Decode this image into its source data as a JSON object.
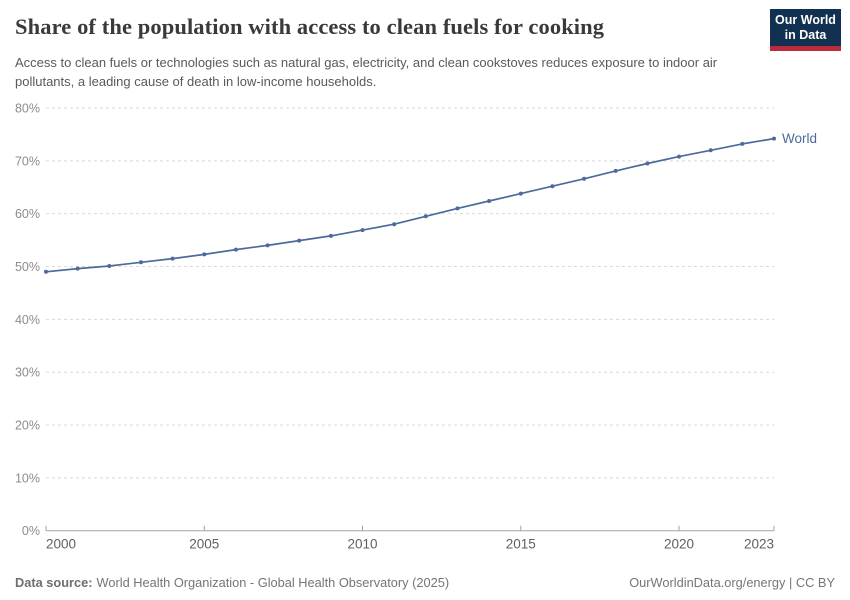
{
  "header": {
    "title": "Share of the population with access to clean fuels for cooking",
    "subtitle": "Access to clean fuels or technologies such as natural gas, electricity, and clean cookstoves reduces exposure to indoor air pollutants, a leading cause of death in low-income households.",
    "logo": {
      "line1": "Our World",
      "line2": "in Data",
      "bg_color": "#12304f",
      "stripe_color": "#bc2b3d"
    }
  },
  "chart_data": {
    "type": "line",
    "title": "Share of the population with access to clean fuels for cooking",
    "xlabel": "",
    "ylabel": "",
    "y_unit": "%",
    "xlim": [
      2000,
      2023
    ],
    "ylim": [
      0,
      80
    ],
    "grid": "horizontal-dashed",
    "legend_position": "end-of-line-label",
    "xticks": [
      2000,
      2005,
      2010,
      2015,
      2020,
      2023
    ],
    "yticks": [
      0,
      10,
      20,
      30,
      40,
      50,
      60,
      70,
      80
    ],
    "x": [
      2000,
      2001,
      2002,
      2003,
      2004,
      2005,
      2006,
      2007,
      2008,
      2009,
      2010,
      2011,
      2012,
      2013,
      2014,
      2015,
      2016,
      2017,
      2018,
      2019,
      2020,
      2021,
      2022,
      2023
    ],
    "series": [
      {
        "name": "World",
        "color": "#4c6a9c",
        "values": [
          49.0,
          49.6,
          50.1,
          50.8,
          51.5,
          52.3,
          53.2,
          54.0,
          54.9,
          55.8,
          56.9,
          58.0,
          59.5,
          61.0,
          62.4,
          63.8,
          65.2,
          66.6,
          68.1,
          69.5,
          70.8,
          72.0,
          73.2,
          74.2
        ]
      }
    ],
    "colors": {
      "gridline": "#d9d9d9",
      "axis": "#a3a3a3",
      "y_tick_label": "#8c8c8c",
      "x_tick_label": "#5f5f5f"
    }
  },
  "footer": {
    "source_label": "Data source:",
    "source_value": "World Health Organization - Global Health Observatory (2025)",
    "right_text": "OurWorldinData.org/energy | CC BY"
  }
}
